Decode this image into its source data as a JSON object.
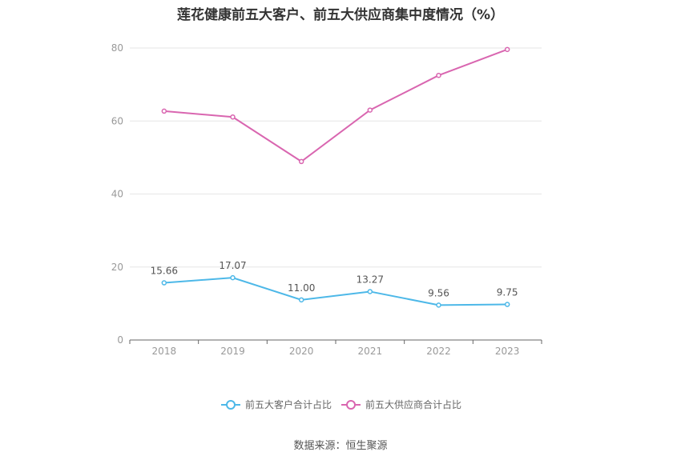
{
  "chart_data": {
    "type": "line",
    "title": "莲花健康前五大客户、前五大供应商集中度情况（%）",
    "categories": [
      "2018",
      "2019",
      "2020",
      "2021",
      "2022",
      "2023"
    ],
    "ylim": [
      0,
      80
    ],
    "yticks": [
      0,
      20,
      40,
      60,
      80
    ],
    "grid": true,
    "legend_position": "bottom-center",
    "series": [
      {
        "name": "前五大客户合计占比",
        "color": "#4db8e8",
        "values": [
          15.66,
          17.07,
          11.0,
          13.27,
          9.56,
          9.75
        ],
        "labels": [
          "15.66",
          "17.07",
          "11.00",
          "13.27",
          "9.56",
          "9.75"
        ]
      },
      {
        "name": "前五大供应商合计占比",
        "color": "#d966b0",
        "values": [
          62.7,
          61.1,
          48.9,
          63.0,
          72.5,
          79.6
        ]
      }
    ]
  },
  "source": "数据来源：恒生聚源"
}
